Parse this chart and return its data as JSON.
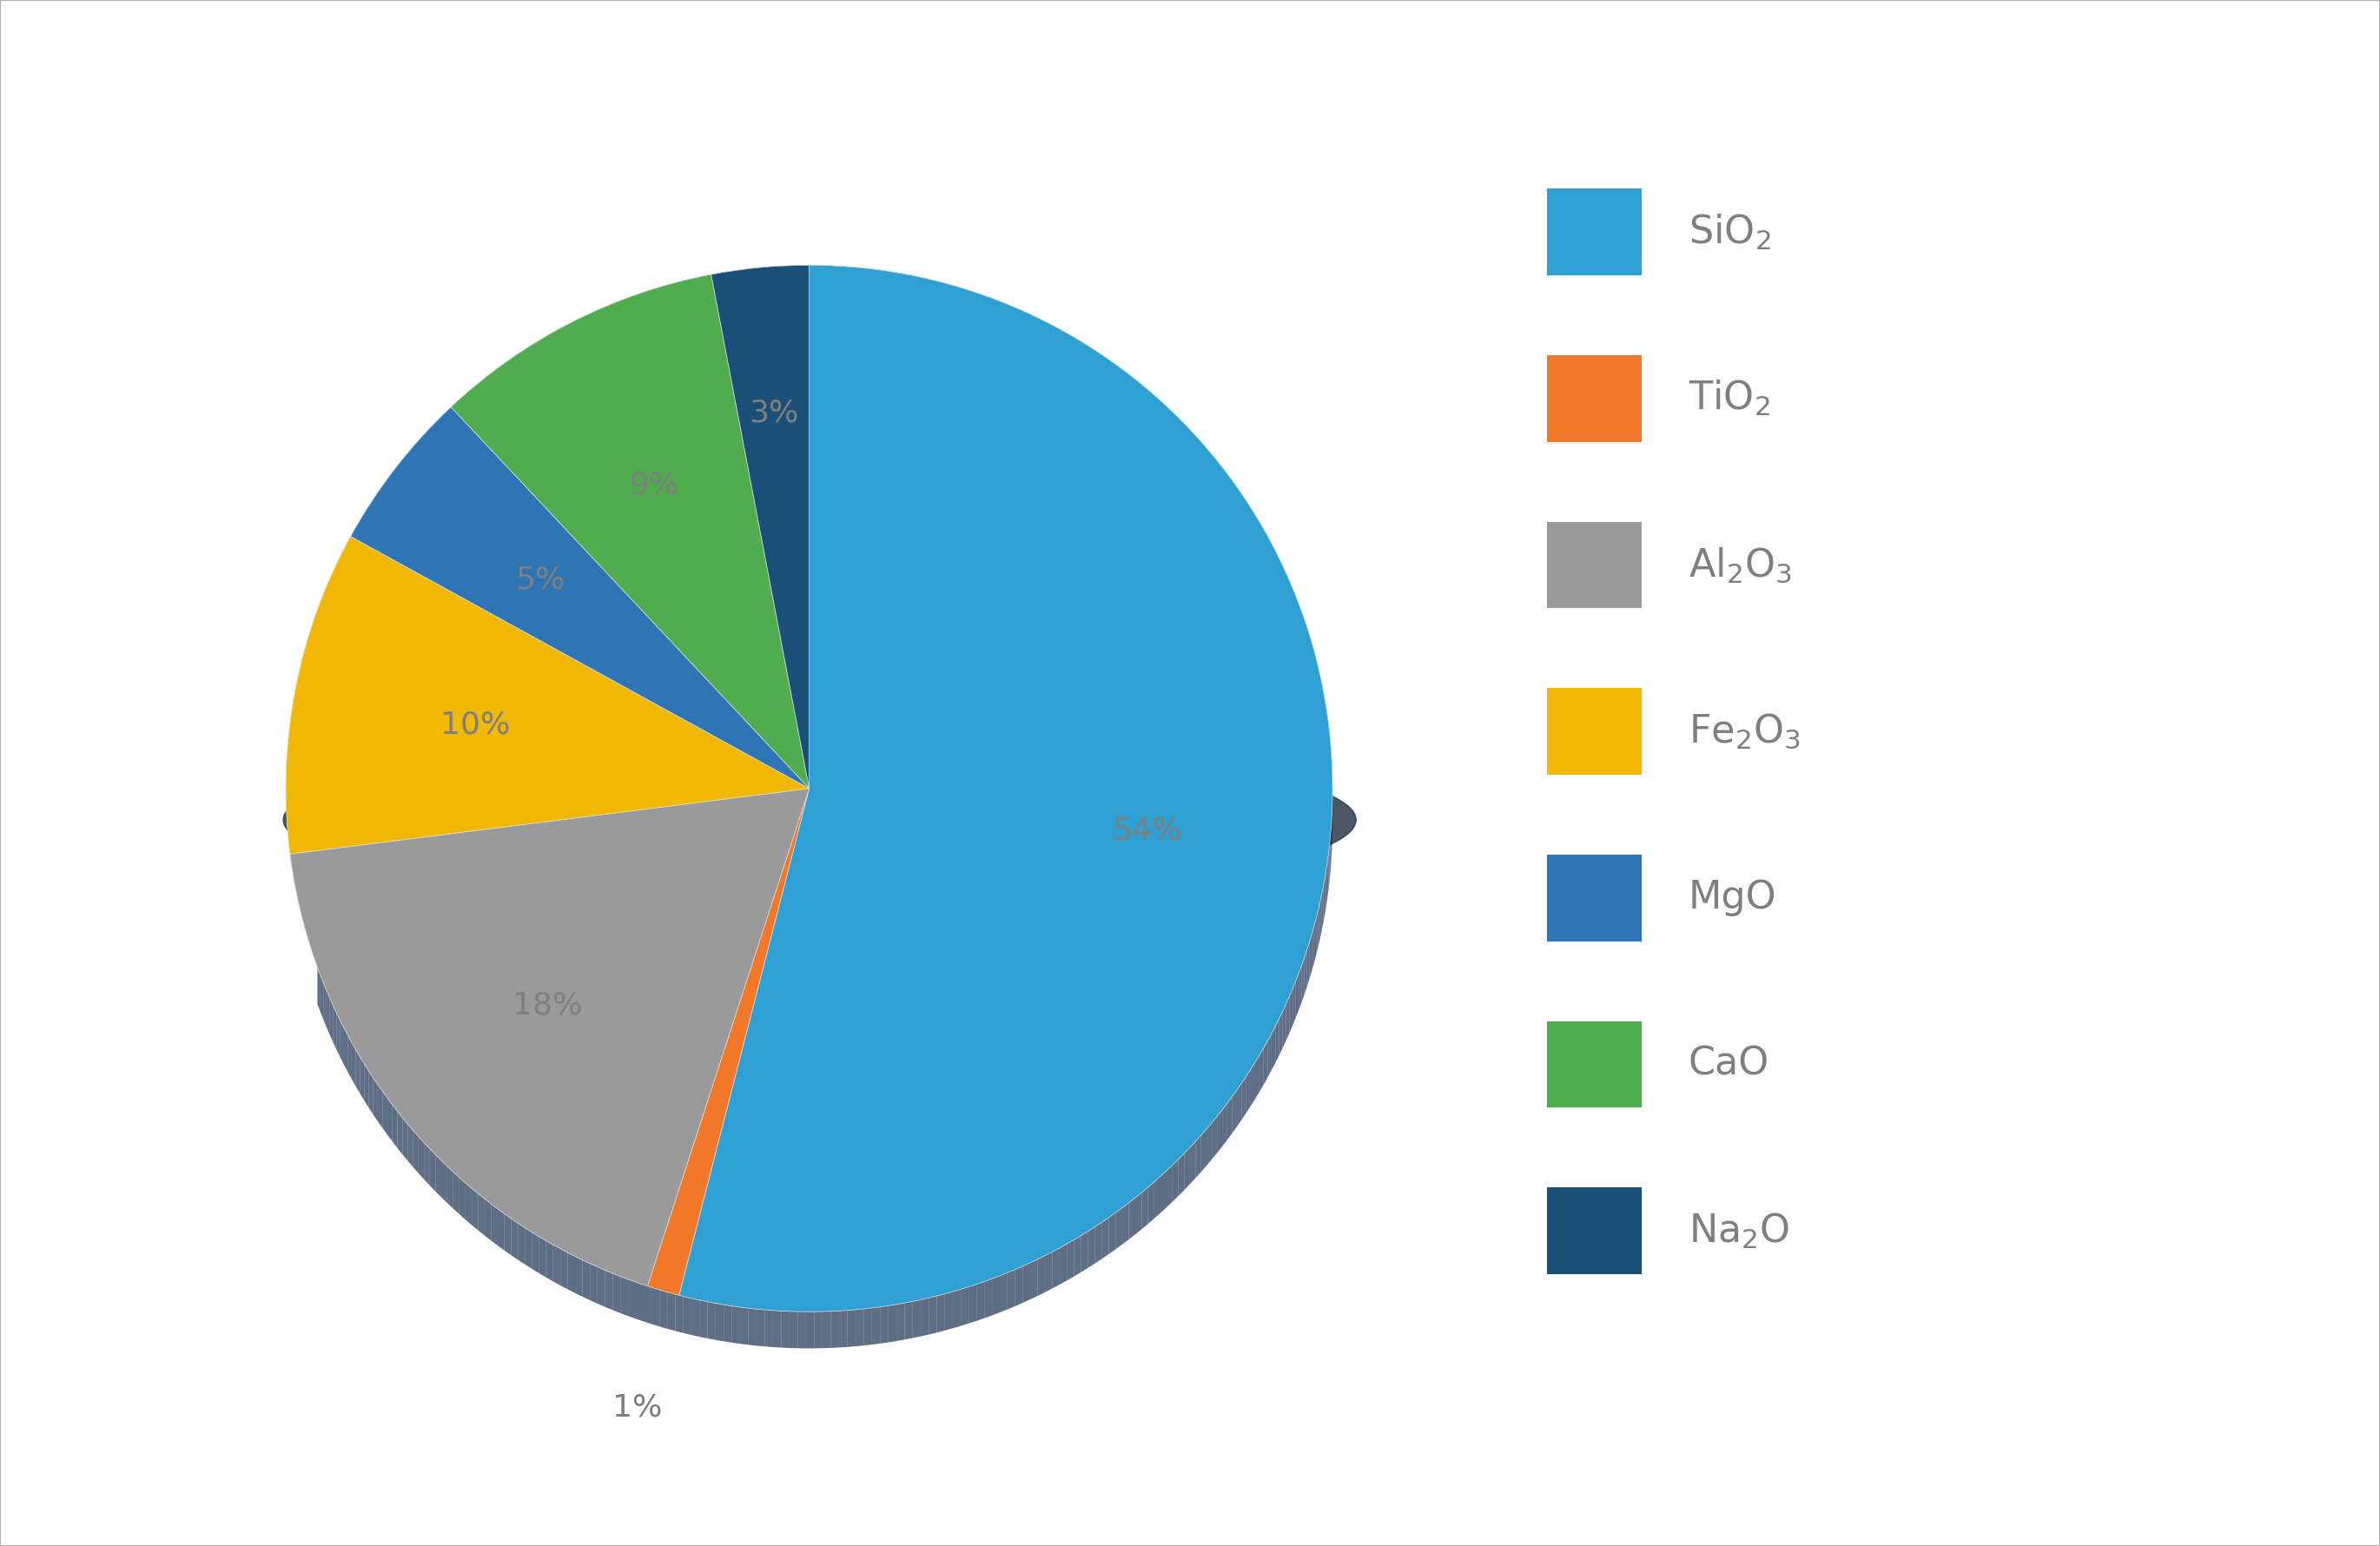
{
  "labels": [
    "SiO₂",
    "TiO₂",
    "Al₂O₃",
    "Fe₂O₃",
    "MgO",
    "CaO",
    "Na₂O"
  ],
  "values": [
    54,
    1,
    18,
    10,
    5,
    9,
    3
  ],
  "colors": [
    "#2fa0d4",
    "#f07828",
    "#9a9a9a",
    "#f0b800",
    "#2e75b6",
    "#4fac4f",
    "#1a4f78"
  ],
  "pct_labels": [
    "54%",
    "1%",
    "18%",
    "10%",
    "5%",
    "9%",
    "3%"
  ],
  "background_color": "#ffffff",
  "label_color": "#7f7f7f",
  "pct_fontsize": 26,
  "legend_fontsize": 32,
  "startangle": 90,
  "legend_display": [
    "SiO$_2$",
    "TiO$_2$",
    "Al$_2$O$_3$",
    "Fe$_2$O$_3$",
    "MgO",
    "CaO",
    "Na$_2$O"
  ],
  "border_color": "#b0b0b0"
}
